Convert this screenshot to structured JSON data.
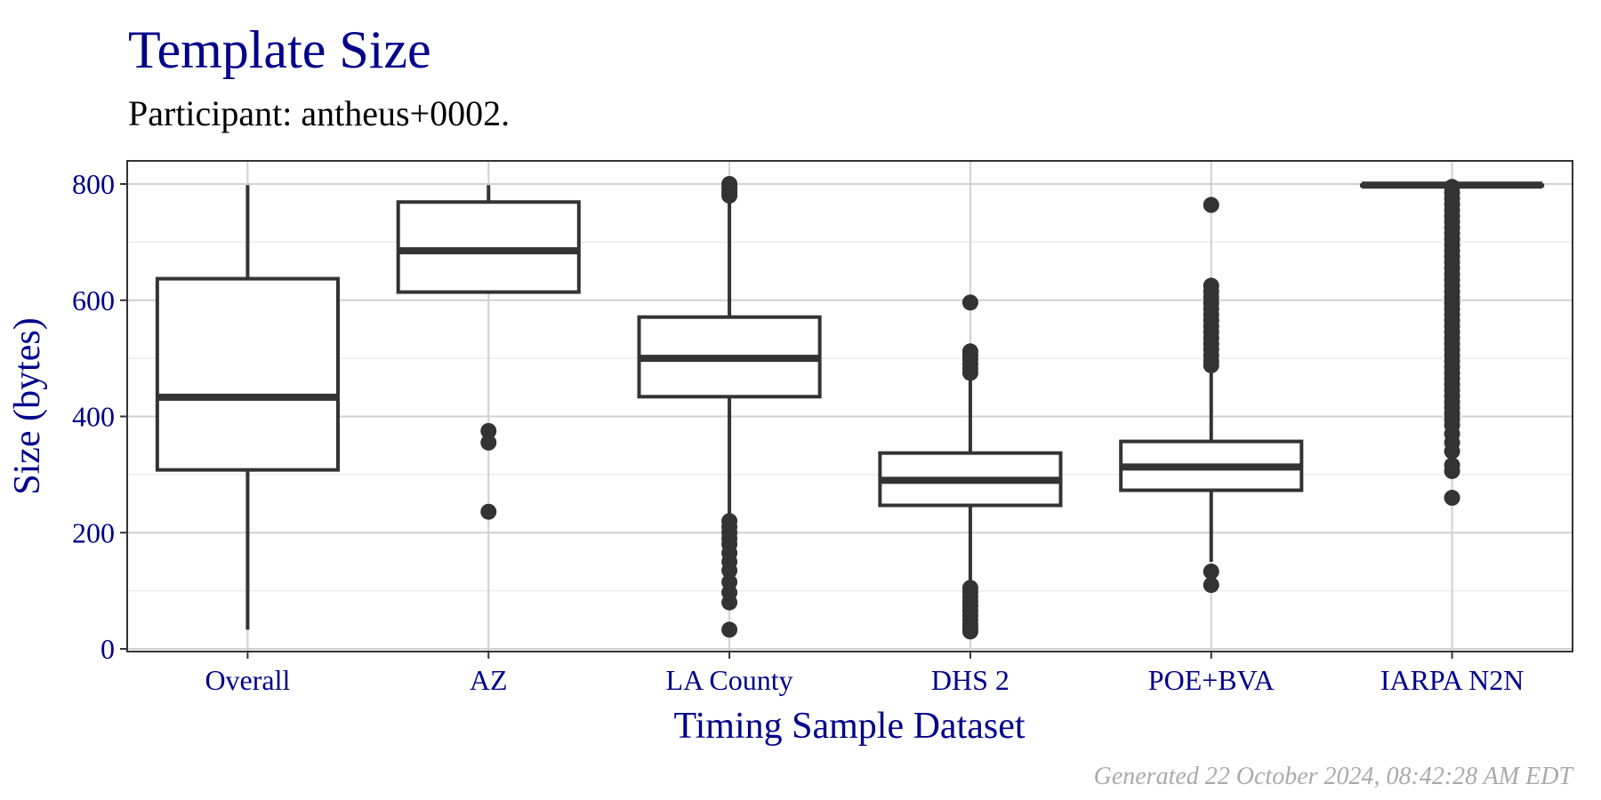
{
  "chart_data": {
    "type": "box",
    "title": "Template Size",
    "subtitle": "Participant: antheus+0002.",
    "xlabel": "Timing Sample Dataset",
    "ylabel": "Size (bytes)",
    "ylim": [
      0,
      800
    ],
    "yticks": [
      0,
      200,
      400,
      600,
      800
    ],
    "grid": true,
    "footer": "Generated 22 October 2024, 08:42:28 AM EDT",
    "colors": {
      "title": "#00008B",
      "box": "#333333",
      "grid": "#d0d0d0",
      "footer": "#aaaaaa"
    },
    "categories": [
      "Overall",
      "AZ",
      "LA County",
      "DHS 2",
      "POE+BVA",
      "IARPA N2N"
    ],
    "boxes": [
      {
        "category": "Overall",
        "min": 33,
        "q1": 308,
        "median": 433,
        "q3": 637,
        "max": 798,
        "outliers": []
      },
      {
        "category": "AZ",
        "min": 614,
        "q1": 614,
        "median": 685,
        "q3": 769,
        "max": 798,
        "outliers": [
          375,
          355,
          236
        ]
      },
      {
        "category": "LA County",
        "min": 228,
        "q1": 434,
        "median": 500,
        "q3": 571,
        "max": 778,
        "outliers": [
          800,
          795,
          790,
          785,
          780,
          220,
          210,
          200,
          190,
          180,
          165,
          150,
          135,
          115,
          97,
          80,
          33
        ]
      },
      {
        "category": "DHS 2",
        "min": 112,
        "q1": 247,
        "median": 290,
        "q3": 337,
        "max": 470,
        "outliers": [
          596,
          512,
          505,
          498,
          490,
          482,
          475,
          105,
          98,
          90,
          82,
          74,
          66,
          58,
          50,
          42,
          35,
          30
        ]
      },
      {
        "category": "POE+BVA",
        "min": 150,
        "q1": 273,
        "median": 313,
        "q3": 357,
        "max": 485,
        "outliers": [
          764,
          625,
          615,
          605,
          595,
          585,
          575,
          565,
          555,
          545,
          535,
          525,
          515,
          505,
          495,
          488,
          133,
          110
        ]
      },
      {
        "category": "IARPA N2N",
        "min": 798,
        "q1": 798,
        "median": 798,
        "q3": 798,
        "max": 798,
        "outliers": [
          795,
          785,
          775,
          765,
          755,
          745,
          735,
          725,
          715,
          705,
          695,
          685,
          675,
          665,
          655,
          645,
          635,
          625,
          615,
          605,
          595,
          585,
          575,
          565,
          555,
          545,
          535,
          525,
          515,
          505,
          495,
          485,
          475,
          465,
          455,
          445,
          435,
          425,
          415,
          405,
          395,
          385,
          370,
          355,
          340,
          316,
          306,
          260
        ]
      }
    ]
  }
}
